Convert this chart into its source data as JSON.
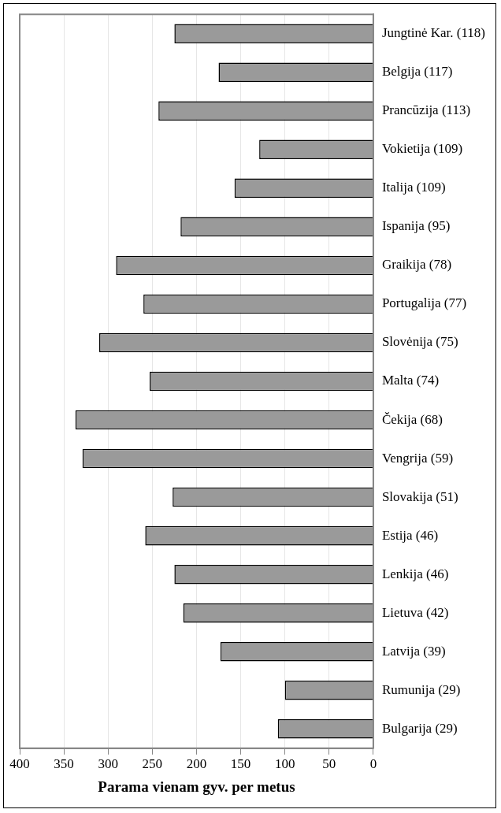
{
  "chart_data": {
    "type": "bar",
    "orientation": "horizontal",
    "xlabel": "Parama vienam gyv. per metus",
    "categories": [
      "Jungtinė Kar. (118)",
      "Belgija (117)",
      "Prancūzija (113)",
      "Vokietija (109)",
      "Italija (109)",
      "Ispanija (95)",
      "Graikija (78)",
      "Portugalija (77)",
      "Slovėnija (75)",
      "Malta (74)",
      "Čekija (68)",
      "Vengrija (59)",
      "Slovakija (51)",
      "Estija (46)",
      "Lenkija (46)",
      "Lietuva (42)",
      "Latvija (39)",
      "Rumunija (29)",
      "Bulgarija (29)"
    ],
    "values": [
      225,
      175,
      243,
      129,
      157,
      218,
      291,
      260,
      310,
      253,
      337,
      329,
      227,
      258,
      225,
      215,
      173,
      100,
      108
    ],
    "color": "#9a9a9a",
    "xlim": [
      400,
      0
    ],
    "xticks": [
      400,
      350,
      300,
      250,
      200,
      150,
      100,
      50,
      0
    ],
    "grid": "x"
  }
}
